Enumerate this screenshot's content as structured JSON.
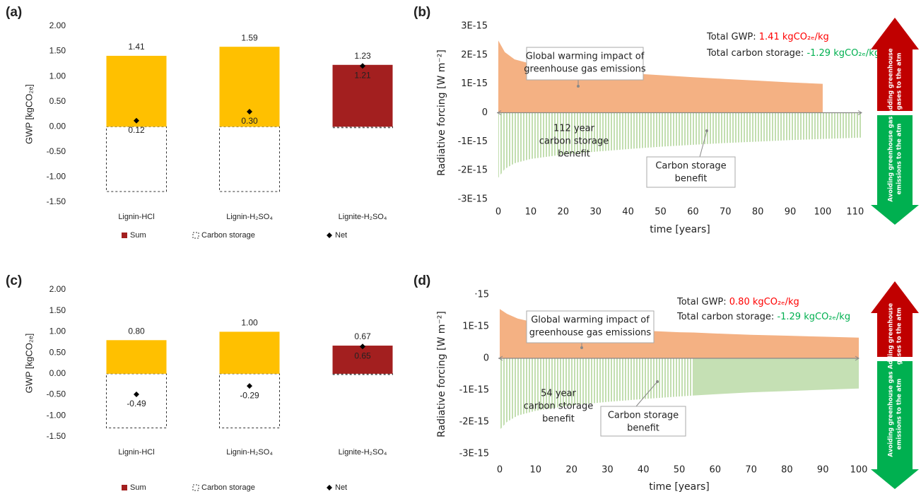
{
  "chart_data": [
    {
      "type": "bar",
      "panel_label": "(a)",
      "ylabel": "GWP [kgCO₂ₑ]",
      "categories": [
        "Lignin-HCl",
        "Lignin-H₂SO₄",
        "Lignite-H₂SO₄"
      ],
      "ylim": [
        -1.5,
        2
      ],
      "grid": false,
      "yticks": [
        {
          "value": 2,
          "label": "2.00"
        },
        {
          "value": 1.5,
          "label": "1.50"
        },
        {
          "value": 1,
          "label": "1.00"
        },
        {
          "value": 0.5,
          "label": "0.50"
        },
        {
          "value": 0,
          "label": "0.00"
        },
        {
          "value": -0.5,
          "label": "-0.50"
        },
        {
          "value": -1,
          "label": "-1.00"
        },
        {
          "value": -1.5,
          "label": "-1.50"
        }
      ],
      "series": [
        {
          "name": "Sum",
          "kind": "bar",
          "color": "#a31f1f",
          "colors": [
            "#ffc000",
            "#ffc000",
            "#a31f1f"
          ],
          "values": [
            1.41,
            1.59,
            1.23
          ],
          "value_labels": [
            "1.41",
            "1.59",
            "1.23"
          ]
        },
        {
          "name": "Carbon storage",
          "kind": "outline",
          "color": "#333333",
          "values": [
            -1.29,
            -1.29,
            -0.02
          ]
        },
        {
          "name": "Net",
          "kind": "point",
          "color": "#000000",
          "values": [
            0.12,
            0.3,
            1.21
          ],
          "value_labels": [
            "0.12",
            "0.30",
            "1.21"
          ]
        }
      ]
    },
    {
      "type": "area",
      "panel_label": "(b)",
      "ylabel": "Radiative forcing [W m⁻²]",
      "xlabel": "time [years]",
      "xlim": [
        0,
        112
      ],
      "xticks": [
        0,
        10,
        20,
        30,
        40,
        50,
        60,
        70,
        80,
        90,
        100,
        110
      ],
      "ylim": [
        -3e-15,
        3e-15
      ],
      "yticks": [
        {
          "value": 3e-15,
          "label": "3E-15"
        },
        {
          "value": 2e-15,
          "label": "2E-15"
        },
        {
          "value": 1e-15,
          "label": "1E-15"
        },
        0,
        {
          "value": -1e-15,
          "label": "-1E-15"
        },
        {
          "value": -2e-15,
          "label": "-2E-15"
        },
        {
          "value": -3e-15,
          "label": "-3E-15"
        }
      ],
      "x": [
        0,
        2,
        5,
        10,
        20,
        30,
        40,
        50,
        60,
        70,
        80,
        90,
        100,
        110,
        112
      ],
      "series": [
        {
          "color": "#f4b183",
          "fill": "solid",
          "values": [
            2.5e-15,
            2.1e-15,
            1.85e-15,
            1.7e-15,
            1.55e-15,
            1.45e-15,
            1.37e-15,
            1.3e-15,
            1.23e-15,
            1.17e-15,
            1.11e-15,
            1.05e-15,
            1e-15,
            null,
            null
          ]
        },
        {
          "color": "#a9d18e",
          "fill": "hatch",
          "values": [
            -2.25e-15,
            -1.95e-15,
            -1.75e-15,
            -1.6e-15,
            -1.45e-15,
            -1.35e-15,
            -1.26e-15,
            -1.18e-15,
            -1.11e-15,
            -1.05e-15,
            -1e-15,
            -9.5e-16,
            -9.1e-16,
            -8.7e-16,
            -8.6e-16
          ]
        }
      ],
      "annotations": [
        {
          "lines": [
            "Global warming impact of",
            "greenhouse gas emissions"
          ],
          "box": true
        },
        {
          "lines": [
            "112 year",
            "carbon storage",
            "benefit"
          ],
          "box": false
        },
        {
          "lines": [
            "Carbon storage",
            "benefit"
          ],
          "box": true
        }
      ],
      "totals": [
        {
          "label": "Total GWP: ",
          "value": "1.41 kgCO₂ₑ/kg",
          "color": "#ff0000"
        },
        {
          "label": "Total carbon storage: ",
          "value": "-1.29 kgCO₂ₑ/kg",
          "color": "#00b050"
        }
      ],
      "arrows": {
        "up": {
          "lines": [
            "Adding greenhouse",
            "gases to the atm"
          ],
          "color": "#c00000"
        },
        "down": {
          "lines": [
            "Avoiding greenhouse gas",
            "emissions to the atm"
          ],
          "color": "#00b050"
        }
      }
    },
    {
      "type": "bar",
      "panel_label": "(c)",
      "ylabel": "GWP [kgCO₂ₑ]",
      "categories": [
        "Lignin-HCl",
        "Lignin-H₂SO₄",
        "Lignite-H₂SO₄"
      ],
      "ylim": [
        -1.5,
        2
      ],
      "grid": false,
      "yticks": [
        {
          "value": 2,
          "label": "2.00"
        },
        {
          "value": 1.5,
          "label": "1.50"
        },
        {
          "value": 1,
          "label": "1.00"
        },
        {
          "value": 0.5,
          "label": "0.50"
        },
        {
          "value": 0,
          "label": "0.00"
        },
        {
          "value": -0.5,
          "label": "-0.50"
        },
        {
          "value": -1,
          "label": "-1.00"
        },
        {
          "value": -1.5,
          "label": "-1.50"
        }
      ],
      "series": [
        {
          "name": "Sum",
          "kind": "bar",
          "color": "#a31f1f",
          "colors": [
            "#ffc000",
            "#ffc000",
            "#a31f1f"
          ],
          "values": [
            0.8,
            1.0,
            0.67
          ],
          "value_labels": [
            "0.80",
            "1.00",
            "0.67"
          ]
        },
        {
          "name": "Carbon storage",
          "kind": "outline",
          "color": "#333333",
          "values": [
            -1.29,
            -1.29,
            -0.02
          ]
        },
        {
          "name": "Net",
          "kind": "point",
          "color": "#000000",
          "values": [
            -0.49,
            -0.29,
            0.65
          ],
          "value_labels": [
            "-0.49",
            "-0.29",
            "0.65"
          ]
        }
      ]
    },
    {
      "type": "area",
      "panel_label": "(d)",
      "ylabel": "Radiative forcing [W m⁻²]",
      "xlabel": "time [years]",
      "xlim": [
        0,
        100
      ],
      "xticks": [
        0,
        10,
        20,
        30,
        40,
        50,
        60,
        70,
        80,
        90,
        100
      ],
      "ylim": [
        -3e-15,
        2e-15
      ],
      "yticks": [
        {
          "value": 2e-15,
          "label": "·15"
        },
        {
          "value": 1e-15,
          "label": "1E-15"
        },
        0,
        {
          "value": -1e-15,
          "label": "-1E-15"
        },
        {
          "value": -2e-15,
          "label": "-2E-15"
        },
        {
          "value": -3e-15,
          "label": "-3E-15"
        }
      ],
      "x": [
        0,
        2,
        5,
        10,
        20,
        30,
        40,
        50,
        54,
        60,
        70,
        80,
        90,
        100
      ],
      "series": [
        {
          "color": "#f4b183",
          "fill": "solid",
          "values": [
            1.55e-15,
            1.4e-15,
            1.25e-15,
            1.12e-15,
            1e-15,
            9.3e-16,
            8.7e-16,
            8.2e-16,
            8.1e-16,
            7.8e-16,
            7.4e-16,
            7.1e-16,
            6.8e-16,
            6.5e-16
          ]
        },
        {
          "color": "#a9d18e",
          "fill": "hatch",
          "values": [
            -2.25e-15,
            -2e-15,
            -1.8e-15,
            -1.65e-15,
            -1.48e-15,
            -1.37e-15,
            -1.28e-15,
            -1.2e-15,
            -1.17e-15,
            null,
            null,
            null,
            null,
            null
          ]
        },
        {
          "color": "#c5e0b4",
          "fill": "solid",
          "values": [
            null,
            null,
            null,
            null,
            null,
            null,
            null,
            null,
            -1.17e-15,
            -1.13e-15,
            -1.07e-15,
            -1.03e-15,
            -9.9e-16,
            -9.5e-16
          ]
        }
      ],
      "annotations": [
        {
          "lines": [
            "Global warming impact of",
            "greenhouse gas emissions"
          ],
          "box": true
        },
        {
          "lines": [
            "54 year",
            "carbon storage",
            "benefit"
          ],
          "box": false
        },
        {
          "lines": [
            "Carbon storage",
            "benefit"
          ],
          "box": true
        }
      ],
      "totals": [
        {
          "label": "Total GWP: ",
          "value": "0.80 kgCO₂ₑ/kg",
          "color": "#ff0000"
        },
        {
          "label": "Total carbon storage: ",
          "value": "-1.29 kgCO₂ₑ/kg",
          "color": "#00b050"
        }
      ],
      "arrows": {
        "up": {
          "lines": [
            "Adding greenhouse",
            "gases to the atm"
          ],
          "color": "#c00000"
        },
        "down": {
          "lines": [
            "Avoiding greenhouse gas",
            "emissions to the atm"
          ],
          "color": "#00b050"
        }
      }
    }
  ]
}
